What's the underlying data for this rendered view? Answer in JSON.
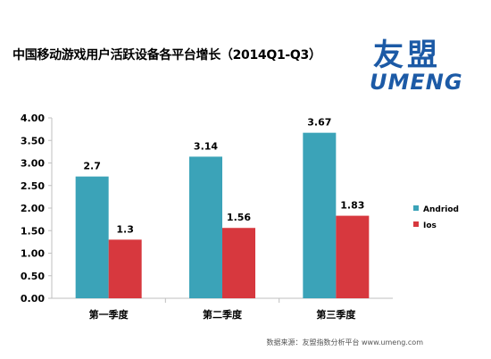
{
  "title": "中国移动游戏用户活跃设备各平台增长（2014Q1-Q3）",
  "logo": {
    "cn": "友盟",
    "en": "UMENG"
  },
  "source": "数据来源：友盟指数分析平台 www.umeng.com",
  "colors": {
    "android": "#3ba3b8",
    "ios": "#d7383e",
    "axis": "#bfbfbf",
    "logo": "#1c5aa6"
  },
  "chart_data": {
    "type": "bar",
    "categories": [
      "第一季度",
      "第二季度",
      "第三季度"
    ],
    "series": [
      {
        "name": "Andriod",
        "values": [
          2.7,
          3.14,
          3.67
        ],
        "color": "#3ba3b8"
      },
      {
        "name": "Ios",
        "values": [
          1.3,
          1.56,
          1.83
        ],
        "color": "#d7383e"
      }
    ],
    "yticks": [
      "0.00",
      "0.50",
      "1.00",
      "1.50",
      "2.00",
      "2.50",
      "3.00",
      "3.50",
      "4.00"
    ],
    "ylim": [
      0,
      4
    ],
    "legend": "right",
    "grid": false
  }
}
